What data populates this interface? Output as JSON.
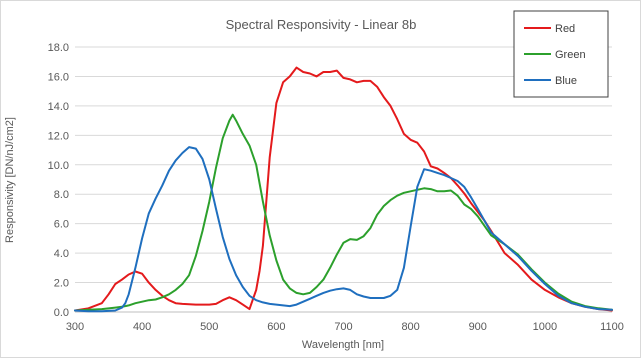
{
  "chart_data": {
    "type": "line",
    "title": "Spectral Responsivity -  Linear 8b",
    "xlabel": "Wavelength [nm]",
    "ylabel": "Responsivity [DN/nJ/cm2]",
    "xlim": [
      300,
      1100
    ],
    "ylim": [
      0,
      18
    ],
    "xticks": [
      300,
      400,
      500,
      600,
      700,
      800,
      900,
      1000,
      1100
    ],
    "yticks": [
      0,
      2,
      4,
      6,
      8,
      10,
      12,
      14,
      16,
      18
    ],
    "ytick_labels": [
      "0.0",
      "2.0",
      "4.0",
      "6.0",
      "8.0",
      "10.0",
      "12.0",
      "14.0",
      "16.0",
      "18.0"
    ],
    "grid": "horizontal",
    "legend_position": "top-right",
    "series": [
      {
        "name": "Red",
        "color": "#e41a1c",
        "x": [
          300,
          320,
          340,
          350,
          360,
          370,
          380,
          390,
          400,
          410,
          420,
          430,
          440,
          450,
          460,
          480,
          500,
          510,
          520,
          530,
          540,
          550,
          560,
          570,
          575,
          580,
          585,
          590,
          600,
          610,
          620,
          630,
          640,
          650,
          660,
          670,
          680,
          690,
          700,
          710,
          720,
          730,
          740,
          750,
          760,
          770,
          780,
          790,
          800,
          810,
          820,
          830,
          840,
          850,
          860,
          870,
          880,
          890,
          900,
          910,
          920,
          940,
          960,
          980,
          1000,
          1020,
          1040,
          1060,
          1080,
          1100
        ],
        "y": [
          0.1,
          0.25,
          0.6,
          1.2,
          1.9,
          2.2,
          2.55,
          2.75,
          2.6,
          2.0,
          1.5,
          1.1,
          0.8,
          0.6,
          0.55,
          0.5,
          0.5,
          0.55,
          0.8,
          1.0,
          0.8,
          0.5,
          0.2,
          1.5,
          2.8,
          4.5,
          7.5,
          10.5,
          14.2,
          15.6,
          16.0,
          16.6,
          16.3,
          16.2,
          16.0,
          16.3,
          16.3,
          16.4,
          15.9,
          15.8,
          15.6,
          15.7,
          15.7,
          15.3,
          14.6,
          14.0,
          13.1,
          12.1,
          11.7,
          11.5,
          10.9,
          9.9,
          9.75,
          9.45,
          9.1,
          8.6,
          8.05,
          7.4,
          6.8,
          6.2,
          5.5,
          4.0,
          3.2,
          2.2,
          1.5,
          1.0,
          0.6,
          0.35,
          0.2,
          0.1
        ]
      },
      {
        "name": "Green",
        "color": "#2ca02c",
        "x": [
          300,
          320,
          340,
          360,
          370,
          380,
          390,
          400,
          410,
          420,
          430,
          440,
          450,
          460,
          470,
          480,
          490,
          500,
          510,
          520,
          530,
          535,
          540,
          550,
          560,
          570,
          580,
          590,
          600,
          610,
          620,
          630,
          640,
          650,
          660,
          670,
          680,
          690,
          700,
          710,
          720,
          730,
          740,
          750,
          760,
          770,
          780,
          790,
          800,
          810,
          820,
          830,
          840,
          850,
          860,
          870,
          880,
          890,
          900,
          920,
          940,
          960,
          980,
          1000,
          1020,
          1040,
          1060,
          1080,
          1100
        ],
        "y": [
          0.1,
          0.15,
          0.2,
          0.3,
          0.35,
          0.45,
          0.6,
          0.7,
          0.8,
          0.85,
          1.0,
          1.2,
          1.5,
          1.9,
          2.5,
          3.8,
          5.5,
          7.5,
          9.8,
          11.8,
          13.0,
          13.4,
          13.0,
          12.1,
          11.3,
          10.0,
          7.5,
          5.2,
          3.5,
          2.2,
          1.6,
          1.3,
          1.2,
          1.3,
          1.7,
          2.2,
          3.0,
          3.9,
          4.7,
          4.95,
          4.9,
          5.15,
          5.7,
          6.6,
          7.2,
          7.6,
          7.9,
          8.1,
          8.2,
          8.3,
          8.4,
          8.35,
          8.2,
          8.2,
          8.25,
          7.9,
          7.3,
          7.0,
          6.5,
          5.2,
          4.6,
          3.9,
          2.9,
          2.0,
          1.25,
          0.7,
          0.4,
          0.25,
          0.15
        ]
      },
      {
        "name": "Blue",
        "color": "#1f6fbf",
        "x": [
          300,
          320,
          340,
          360,
          370,
          375,
          380,
          390,
          400,
          410,
          420,
          430,
          440,
          450,
          460,
          470,
          480,
          490,
          500,
          510,
          520,
          530,
          540,
          550,
          560,
          570,
          580,
          590,
          600,
          610,
          620,
          630,
          640,
          650,
          660,
          670,
          680,
          690,
          700,
          710,
          720,
          730,
          740,
          750,
          760,
          770,
          780,
          790,
          800,
          810,
          820,
          830,
          840,
          850,
          860,
          870,
          880,
          890,
          900,
          920,
          940,
          960,
          980,
          1000,
          1020,
          1040,
          1060,
          1080,
          1100
        ],
        "y": [
          0.1,
          0.05,
          0.05,
          0.1,
          0.3,
          0.6,
          1.2,
          3.0,
          5.0,
          6.7,
          7.7,
          8.6,
          9.6,
          10.3,
          10.8,
          11.2,
          11.1,
          10.4,
          9.0,
          7.0,
          5.1,
          3.6,
          2.5,
          1.7,
          1.1,
          0.8,
          0.65,
          0.55,
          0.5,
          0.45,
          0.4,
          0.5,
          0.7,
          0.9,
          1.1,
          1.3,
          1.45,
          1.55,
          1.6,
          1.5,
          1.2,
          1.05,
          0.95,
          0.95,
          0.95,
          1.1,
          1.5,
          3.0,
          5.8,
          8.5,
          9.7,
          9.6,
          9.45,
          9.3,
          9.1,
          8.9,
          8.5,
          7.8,
          7.0,
          5.4,
          4.6,
          3.8,
          2.8,
          1.9,
          1.1,
          0.6,
          0.35,
          0.2,
          0.15
        ]
      }
    ]
  }
}
